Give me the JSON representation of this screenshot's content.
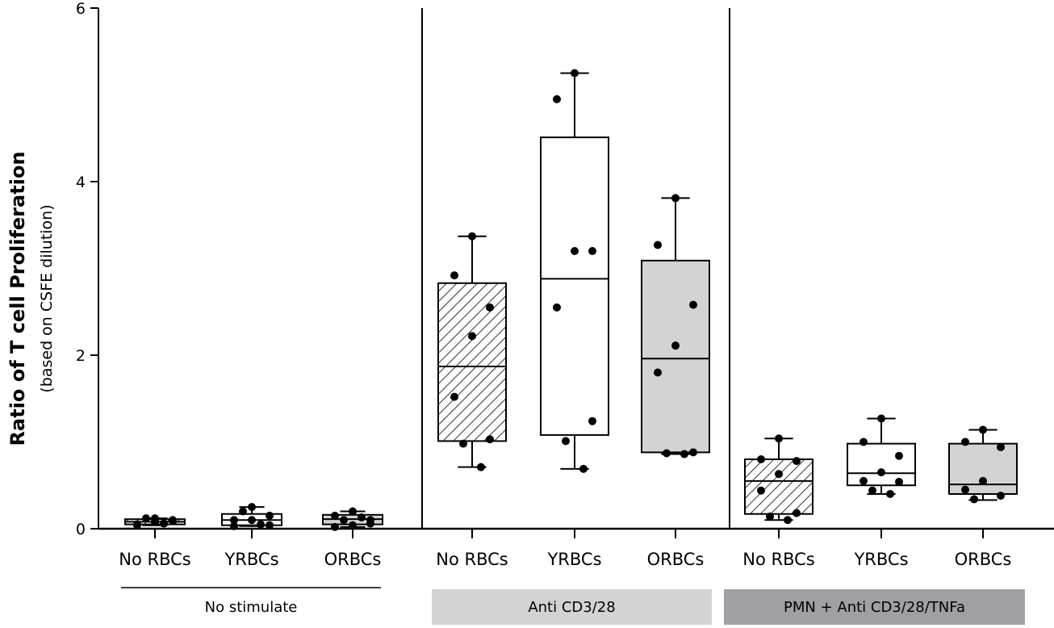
{
  "chart_data": {
    "type": "box",
    "ylabel": "Ratio of T cell Proliferation",
    "ylabel_sub": "(based on CSFE dilution)",
    "ylim": [
      0,
      6
    ],
    "yticks": [
      "0",
      "2",
      "4",
      "6"
    ],
    "grid": false,
    "groups": [
      {
        "label": "No stimulate",
        "color": "#ffffff",
        "boxes": [
          {
            "category": "No RBCs",
            "fill": "hatch",
            "min": 0.04,
            "q1": 0.05,
            "median": 0.08,
            "q3": 0.11,
            "max": 0.12,
            "points": [
              0.12,
              0.04,
              0.1,
              0.08,
              0.05,
              0.09,
              0.12,
              0.06,
              0.08
            ]
          },
          {
            "category": "YRBCs",
            "fill": "#ffffff",
            "min": 0.03,
            "q1": 0.04,
            "median": 0.1,
            "q3": 0.17,
            "max": 0.25,
            "points": [
              0.25,
              0.1,
              0.04,
              0.1,
              0.03,
              0.15,
              0.2,
              0.05
            ]
          },
          {
            "category": "ORBCs",
            "fill": "#d3d3d3",
            "min": 0.02,
            "q1": 0.05,
            "median": 0.11,
            "q3": 0.16,
            "max": 0.2,
            "points": [
              0.2,
              0.15,
              0.1,
              0.04,
              0.02,
              0.06,
              0.1,
              0.13
            ]
          }
        ]
      },
      {
        "label": "Anti CD3/28",
        "color": "#d3d3d3",
        "boxes": [
          {
            "category": "No RBCs",
            "fill": "hatch",
            "min": 0.71,
            "q1": 1.01,
            "median": 1.87,
            "q3": 2.83,
            "max": 3.37,
            "points": [
              3.37,
              2.92,
              2.55,
              2.22,
              1.52,
              1.03,
              0.98,
              0.71
            ]
          },
          {
            "category": "YRBCs",
            "fill": "#ffffff",
            "min": 0.69,
            "q1": 1.08,
            "median": 2.88,
            "q3": 4.51,
            "max": 5.25,
            "points": [
              5.25,
              4.95,
              3.2,
              3.2,
              2.55,
              1.24,
              1.01,
              0.69
            ]
          },
          {
            "category": "ORBCs",
            "fill": "#d3d3d3",
            "min": 0.86,
            "q1": 0.88,
            "median": 1.96,
            "q3": 3.09,
            "max": 3.81,
            "points": [
              3.81,
              3.27,
              2.58,
              2.11,
              1.8,
              0.88,
              0.87,
              0.86
            ]
          }
        ]
      },
      {
        "label": "PMN + Anti CD3/28/TNFa",
        "color": "#a0a0a4",
        "boxes": [
          {
            "category": "No RBCs",
            "fill": "hatch",
            "min": 0.1,
            "q1": 0.17,
            "median": 0.55,
            "q3": 0.8,
            "max": 1.04,
            "points": [
              1.04,
              0.8,
              0.78,
              0.63,
              0.44,
              0.18,
              0.14,
              0.1
            ]
          },
          {
            "category": "YRBCs",
            "fill": "#ffffff",
            "min": 0.4,
            "q1": 0.5,
            "median": 0.64,
            "q3": 0.98,
            "max": 1.27,
            "points": [
              1.27,
              1.0,
              0.84,
              0.65,
              0.55,
              0.54,
              0.44,
              0.4
            ]
          },
          {
            "category": "ORBCs",
            "fill": "#d3d3d3",
            "min": 0.33,
            "q1": 0.4,
            "median": 0.51,
            "q3": 0.98,
            "max": 1.14,
            "points": [
              1.14,
              1.0,
              0.94,
              0.55,
              0.45,
              0.38,
              0.34
            ]
          }
        ]
      }
    ]
  }
}
